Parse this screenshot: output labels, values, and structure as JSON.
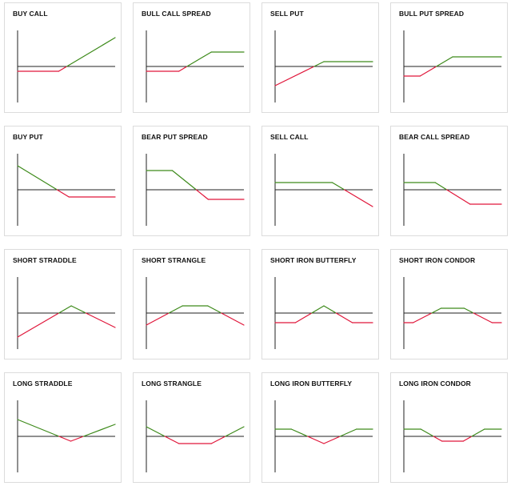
{
  "colors": {
    "profit": "#3d8a1a",
    "loss": "#e0163a",
    "axis": "#222222"
  },
  "strategies": [
    {
      "title": "BUY CALL",
      "payoff": [
        [
          0,
          -2
        ],
        [
          8,
          -2
        ],
        [
          19,
          12
        ]
      ]
    },
    {
      "title": "BULL CALL SPREAD",
      "payoff": [
        [
          0,
          -2
        ],
        [
          8,
          -2
        ],
        [
          16,
          6
        ],
        [
          24,
          6
        ]
      ]
    },
    {
      "title": "SELL PUT",
      "payoff": [
        [
          0,
          -8
        ],
        [
          10,
          2
        ],
        [
          20,
          2
        ]
      ]
    },
    {
      "title": "BULL PUT SPREAD",
      "payoff": [
        [
          0,
          -4
        ],
        [
          4,
          -4
        ],
        [
          12,
          4
        ],
        [
          24,
          4
        ]
      ]
    },
    {
      "title": "BUY PUT",
      "payoff": [
        [
          0,
          10
        ],
        [
          10,
          -3
        ],
        [
          19,
          -3
        ]
      ]
    },
    {
      "title": "BEAR PUT SPREAD",
      "payoff": [
        [
          0,
          8
        ],
        [
          8,
          8
        ],
        [
          19,
          -4
        ],
        [
          30,
          -4
        ]
      ]
    },
    {
      "title": "SELL CALL",
      "payoff": [
        [
          0,
          3
        ],
        [
          17,
          3
        ],
        [
          29,
          -7
        ]
      ]
    },
    {
      "title": "BEAR CALL SPREAD",
      "payoff": [
        [
          0,
          3
        ],
        [
          9,
          3
        ],
        [
          19,
          -6
        ],
        [
          28,
          -6
        ]
      ]
    },
    {
      "title": "SHORT STRADDLE",
      "payoff": [
        [
          0,
          -10
        ],
        [
          11,
          3
        ],
        [
          20,
          -6
        ]
      ]
    },
    {
      "title": "SHORT STRANGLE",
      "payoff": [
        [
          0,
          -5
        ],
        [
          10,
          3
        ],
        [
          17,
          3
        ],
        [
          27,
          -5
        ]
      ]
    },
    {
      "title": "SHORT IRON BUTTERFLY",
      "payoff": [
        [
          0,
          -4
        ],
        [
          5,
          -4
        ],
        [
          12,
          3
        ],
        [
          19,
          -4
        ],
        [
          24,
          -4
        ]
      ]
    },
    {
      "title": "SHORT IRON CONDOR",
      "payoff": [
        [
          0,
          -4
        ],
        [
          2,
          -4
        ],
        [
          8,
          2
        ],
        [
          13,
          2
        ],
        [
          19,
          -4
        ],
        [
          21,
          -4
        ]
      ]
    },
    {
      "title": "LONG STRADDLE",
      "payoff": [
        [
          0,
          7
        ],
        [
          12,
          -2
        ],
        [
          22,
          5
        ]
      ]
    },
    {
      "title": "LONG STRANGLE",
      "payoff": [
        [
          0,
          4
        ],
        [
          7,
          -3
        ],
        [
          14,
          -3
        ],
        [
          21,
          4
        ]
      ]
    },
    {
      "title": "LONG IRON BUTTERFLY",
      "payoff": [
        [
          0,
          3
        ],
        [
          4,
          3
        ],
        [
          12,
          -3
        ],
        [
          20,
          3
        ],
        [
          24,
          3
        ]
      ]
    },
    {
      "title": "LONG IRON CONDOR",
      "payoff": [
        [
          0,
          3
        ],
        [
          4,
          3
        ],
        [
          9,
          -2
        ],
        [
          14,
          -2
        ],
        [
          19,
          3
        ],
        [
          23,
          3
        ]
      ]
    }
  ]
}
